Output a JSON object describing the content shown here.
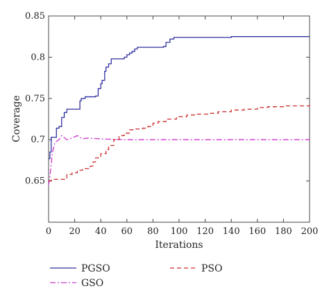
{
  "chart_data": {
    "type": "line",
    "title": "",
    "xlabel": "Iterations",
    "ylabel": "Coverage",
    "xlim": [
      0,
      200
    ],
    "ylim": [
      0.6,
      0.85
    ],
    "xticks": [
      "0",
      "20",
      "40",
      "60",
      "80",
      "100",
      "120",
      "140",
      "160",
      "180",
      "200"
    ],
    "yticks": [
      "0.65",
      "0.7",
      "0.75",
      "0.8",
      "0.85"
    ],
    "grid": false,
    "legend_position": "bottom",
    "series": [
      {
        "name": "PGSO",
        "color": "#2f2f9f",
        "style": "solid",
        "step": true,
        "points": [
          [
            0,
            0.677
          ],
          [
            1,
            0.685
          ],
          [
            2,
            0.703
          ],
          [
            5,
            0.703
          ],
          [
            6,
            0.714
          ],
          [
            8,
            0.716
          ],
          [
            10,
            0.727
          ],
          [
            12,
            0.733
          ],
          [
            14,
            0.737
          ],
          [
            20,
            0.737
          ],
          [
            24,
            0.747
          ],
          [
            25,
            0.75
          ],
          [
            28,
            0.752
          ],
          [
            36,
            0.753
          ],
          [
            38,
            0.762
          ],
          [
            40,
            0.768
          ],
          [
            41,
            0.772
          ],
          [
            43,
            0.783
          ],
          [
            44,
            0.788
          ],
          [
            46,
            0.792
          ],
          [
            48,
            0.798
          ],
          [
            58,
            0.8
          ],
          [
            60,
            0.803
          ],
          [
            62,
            0.805
          ],
          [
            64,
            0.807
          ],
          [
            66,
            0.81
          ],
          [
            68,
            0.812
          ],
          [
            88,
            0.813
          ],
          [
            90,
            0.818
          ],
          [
            93,
            0.822
          ],
          [
            96,
            0.824
          ],
          [
            140,
            0.825
          ],
          [
            200,
            0.825
          ]
        ]
      },
      {
        "name": "GSO",
        "color": "#cc33cc",
        "style": "dashdot",
        "step": false,
        "points": [
          [
            0,
            0.645
          ],
          [
            1,
            0.655
          ],
          [
            3,
            0.685
          ],
          [
            5,
            0.697
          ],
          [
            8,
            0.7
          ],
          [
            10,
            0.705
          ],
          [
            14,
            0.7
          ],
          [
            18,
            0.702
          ],
          [
            22,
            0.705
          ],
          [
            26,
            0.701
          ],
          [
            30,
            0.702
          ],
          [
            40,
            0.701
          ],
          [
            60,
            0.7
          ],
          [
            100,
            0.7
          ],
          [
            200,
            0.7
          ]
        ]
      },
      {
        "name": "PSO",
        "color": "#cc2a2a",
        "style": "dashed",
        "step": true,
        "points": [
          [
            0,
            0.65
          ],
          [
            2,
            0.652
          ],
          [
            10,
            0.652
          ],
          [
            14,
            0.658
          ],
          [
            18,
            0.66
          ],
          [
            22,
            0.663
          ],
          [
            26,
            0.665
          ],
          [
            32,
            0.668
          ],
          [
            34,
            0.673
          ],
          [
            36,
            0.678
          ],
          [
            40,
            0.683
          ],
          [
            44,
            0.688
          ],
          [
            46,
            0.693
          ],
          [
            50,
            0.7
          ],
          [
            54,
            0.705
          ],
          [
            58,
            0.708
          ],
          [
            62,
            0.712
          ],
          [
            66,
            0.713
          ],
          [
            72,
            0.714
          ],
          [
            76,
            0.716
          ],
          [
            80,
            0.72
          ],
          [
            84,
            0.722
          ],
          [
            90,
            0.725
          ],
          [
            98,
            0.728
          ],
          [
            106,
            0.73
          ],
          [
            114,
            0.731
          ],
          [
            122,
            0.732
          ],
          [
            130,
            0.734
          ],
          [
            140,
            0.736
          ],
          [
            150,
            0.737
          ],
          [
            160,
            0.739
          ],
          [
            168,
            0.74
          ],
          [
            180,
            0.741
          ],
          [
            200,
            0.742
          ]
        ]
      }
    ]
  }
}
